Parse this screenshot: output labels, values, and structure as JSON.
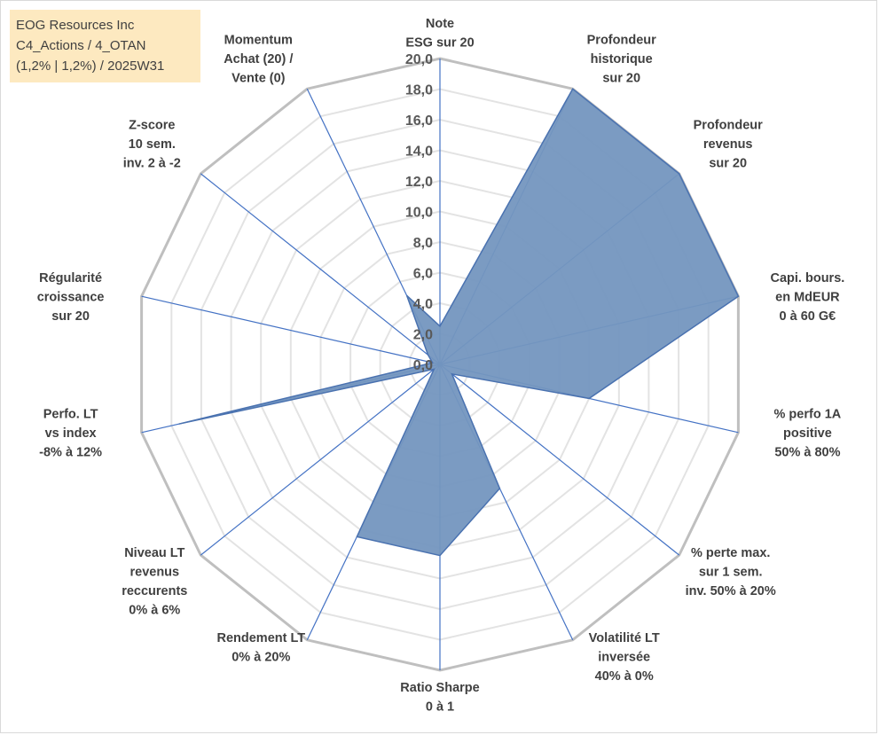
{
  "info_box": {
    "line1": "EOG Resources Inc",
    "line2": "C4_Actions / 4_OTAN",
    "line3": "(1,2% | 1,2%) / 2025W31"
  },
  "colors": {
    "fill": "#7496bf",
    "stroke": "#4a72b0",
    "spoke": "#4472c4",
    "grid_outer": "#bfbfbf",
    "grid_inner": "#e3e3e3",
    "info_bg": "#fde9c0"
  },
  "chart_data": {
    "type": "radar",
    "title": "",
    "rmin": 0,
    "rmax": 20,
    "tick_step": 2,
    "tick_labels": [
      "0,0",
      "2,0",
      "4,0",
      "6,0",
      "8,0",
      "10,0",
      "12,0",
      "14,0",
      "16,0",
      "18,0",
      "20,0"
    ],
    "axes": [
      {
        "label": [
          "Note",
          "ESG sur 20"
        ],
        "value": 2.5
      },
      {
        "label": [
          "Profondeur",
          "historique",
          "sur 20"
        ],
        "value": 20
      },
      {
        "label": [
          "Profondeur",
          "revenus",
          "sur 20"
        ],
        "value": 20
      },
      {
        "label": [
          "Capi. bours.",
          "en MdEUR",
          "0 à 60 G€"
        ],
        "value": 20
      },
      {
        "label": [
          "% perfo 1A",
          "positive",
          "50% à 80%"
        ],
        "value": 10
      },
      {
        "label": [
          "% perte max.",
          "sur 1 sem.",
          "inv. 50% à 20%"
        ],
        "value": 1
      },
      {
        "label": [
          "Volatilité LT",
          "inversée",
          "40% à 0%"
        ],
        "value": 9
      },
      {
        "label": [
          "Ratio Sharpe",
          "0 à 1"
        ],
        "value": 12.5
      },
      {
        "label": [
          "Rendement LT",
          "0% à 20%"
        ],
        "value": 12.5
      },
      {
        "label": [
          "Niveau LT",
          "revenus",
          "reccurents",
          "0% à 6%"
        ],
        "value": 0.5
      },
      {
        "label": [
          "Perfo. LT",
          "vs index",
          "-8% à 12%"
        ],
        "value": 17.5
      },
      {
        "label": [
          "Régularité",
          "croissance",
          "sur 20"
        ],
        "value": 0.5
      },
      {
        "label": [
          "Z-score",
          "10 sem.",
          "inv. 2 à -2"
        ],
        "value": 1
      },
      {
        "label": [
          "Momentum",
          "Achat (20) /",
          "Vente (0)"
        ],
        "value": 5
      }
    ]
  }
}
